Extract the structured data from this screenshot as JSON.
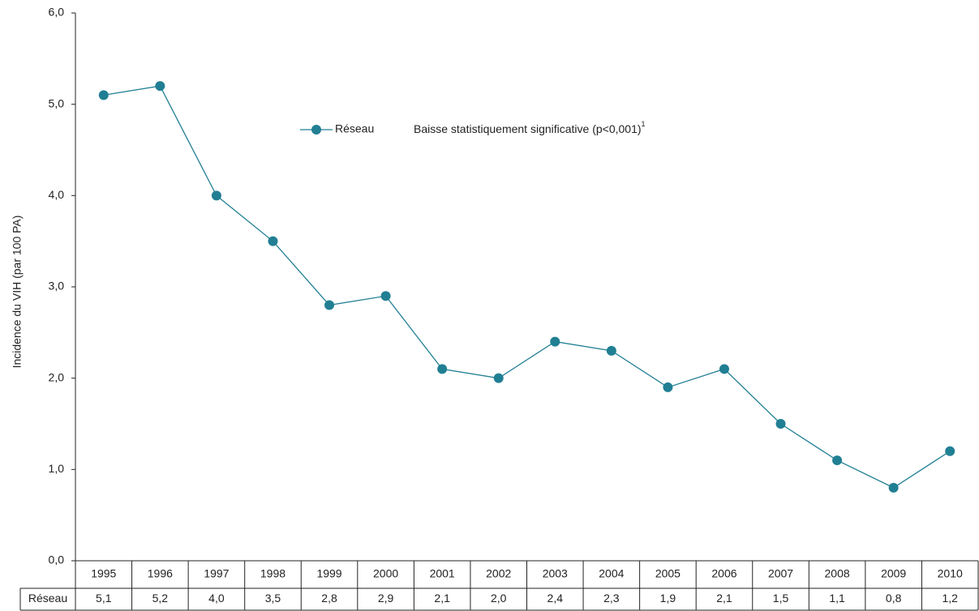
{
  "chart_data": {
    "type": "line",
    "y_label": "Incidence du VIH (par 100 PA)",
    "annotation": "Baisse statistiquement significative (p<0,001)",
    "annotation_sup": "1",
    "categories": [
      "1995",
      "1996",
      "1997",
      "1998",
      "1999",
      "2000",
      "2001",
      "2002",
      "2003",
      "2004",
      "2005",
      "2006",
      "2007",
      "2008",
      "2009",
      "2010"
    ],
    "series": [
      {
        "name": "Réseau",
        "color": "#217f93",
        "values": [
          5.1,
          5.2,
          4.0,
          3.5,
          2.8,
          2.9,
          2.1,
          2.0,
          2.4,
          2.3,
          1.9,
          2.1,
          1.5,
          1.1,
          0.8,
          1.2
        ],
        "value_labels": [
          "5,1",
          "5,2",
          "4,0",
          "3,5",
          "2,8",
          "2,9",
          "2,1",
          "2,0",
          "2,4",
          "2,3",
          "1,9",
          "2,1",
          "1,5",
          "1,1",
          "0,8",
          "1,2"
        ]
      }
    ],
    "ylim": [
      0,
      6
    ],
    "yticks": [
      {
        "value": 0,
        "label": "0,0"
      },
      {
        "value": 1,
        "label": "1,0"
      },
      {
        "value": 2,
        "label": "2,0"
      },
      {
        "value": 3,
        "label": "3,0"
      },
      {
        "value": 4,
        "label": "4,0"
      },
      {
        "value": 5,
        "label": "5,0"
      },
      {
        "value": 6,
        "label": "6,0"
      }
    ],
    "grid": false
  }
}
